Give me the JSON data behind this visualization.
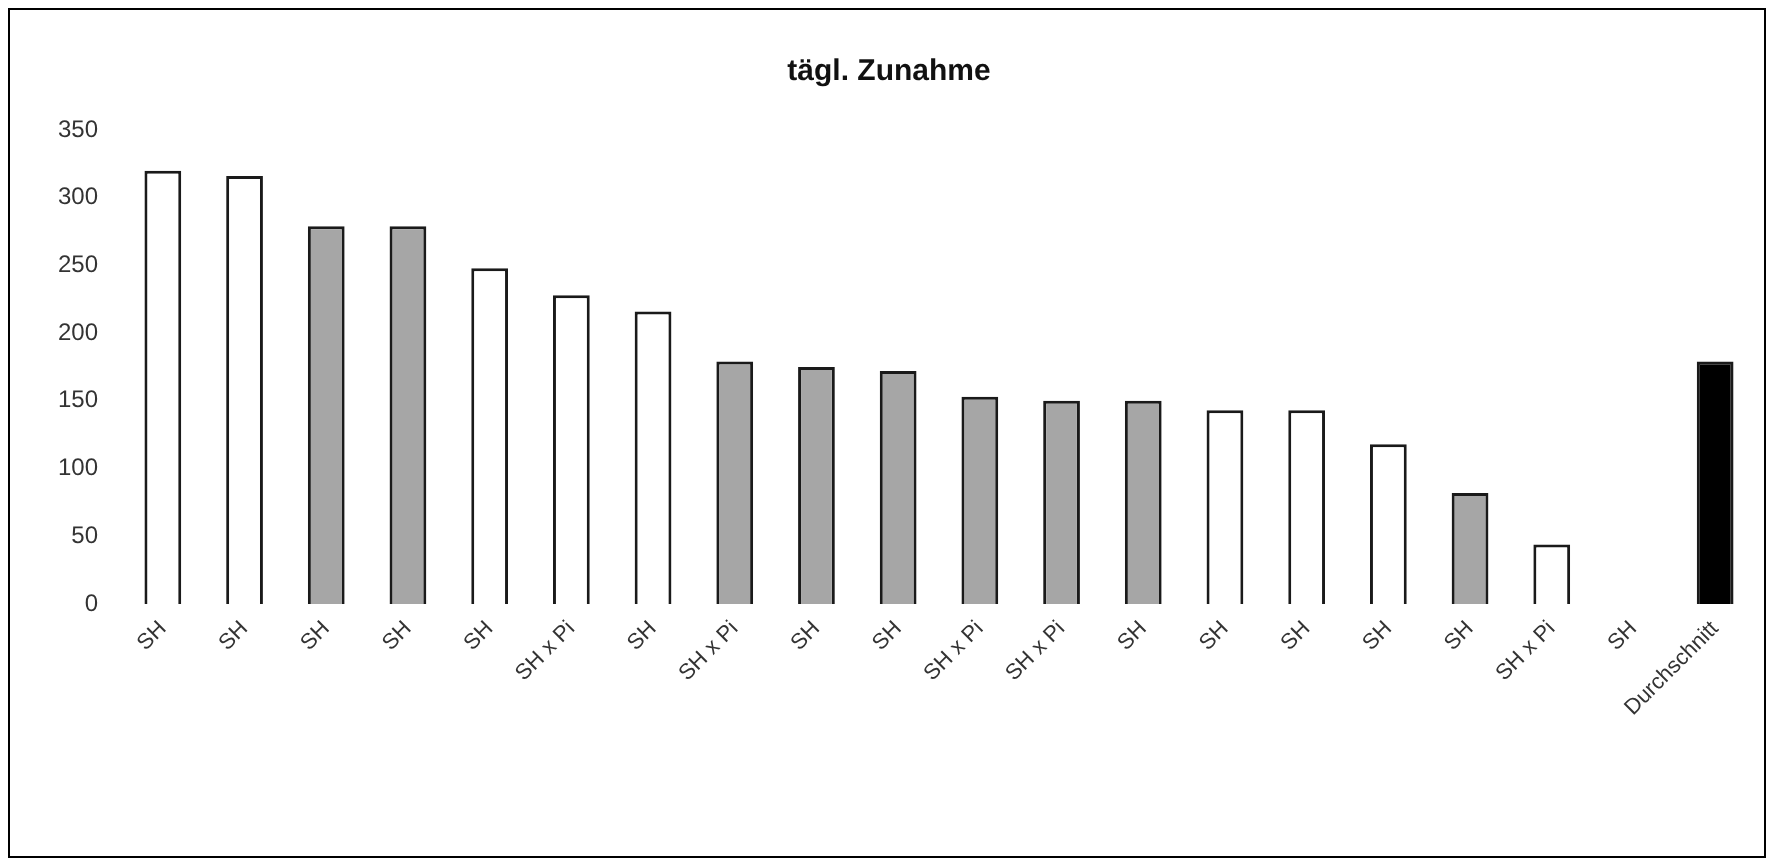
{
  "chart_data": {
    "type": "bar",
    "title": "tägl. Zunahme",
    "categories": [
      "SH",
      "SH",
      "SH",
      "SH",
      "SH",
      "SH x Pi",
      "SH",
      "SH x Pi",
      "SH",
      "SH",
      "SH x Pi",
      "SH x Pi",
      "SH",
      "SH",
      "SH",
      "SH",
      "SH",
      "SH x Pi",
      "SH",
      "Durchschnitt"
    ],
    "values": [
      320,
      316,
      279,
      279,
      248,
      228,
      216,
      179,
      175,
      172,
      153,
      150,
      150,
      143,
      143,
      118,
      82,
      44,
      null,
      179
    ],
    "colors": [
      "#ffffff",
      "#ffffff",
      "#a6a6a6",
      "#a6a6a6",
      "#ffffff",
      "#ffffff",
      "#ffffff",
      "#a6a6a6",
      "#a6a6a6",
      "#a6a6a6",
      "#a6a6a6",
      "#a6a6a6",
      "#a6a6a6",
      "#ffffff",
      "#ffffff",
      "#ffffff",
      "#a6a6a6",
      "#ffffff",
      "#ffffff",
      "#000000"
    ],
    "ylim": [
      0,
      350
    ],
    "yticks": [
      0,
      50,
      100,
      150,
      200,
      250,
      300,
      350
    ],
    "grid": false
  }
}
